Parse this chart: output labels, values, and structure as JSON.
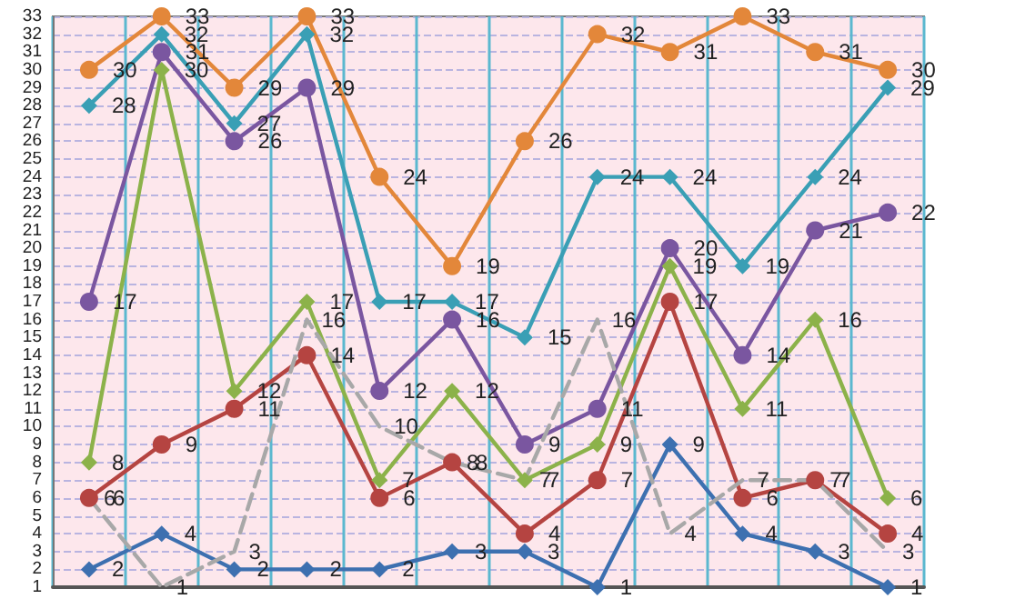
{
  "chart_data": {
    "type": "line",
    "categories": [
      null,
      null,
      null,
      null,
      null,
      null,
      null,
      null,
      null,
      null,
      null,
      null
    ],
    "series": [
      {
        "color": "#e3873a",
        "marker": "circle",
        "values": [
          30,
          33,
          29,
          33,
          24,
          19,
          26,
          32,
          31,
          33,
          31,
          30
        ]
      },
      {
        "color": "#3a9fb5",
        "marker": "diamond",
        "values": [
          28,
          32,
          27,
          32,
          17,
          17,
          15,
          24,
          24,
          19,
          24,
          29
        ]
      },
      {
        "color": "#7a56a0",
        "marker": "circle",
        "values": [
          17,
          31,
          26,
          29,
          12,
          16,
          9,
          11,
          20,
          14,
          21,
          22
        ]
      },
      {
        "color": "#8cb24a",
        "marker": "diamond",
        "values": [
          8,
          30,
          12,
          17,
          7,
          12,
          7,
          9,
          19,
          11,
          16,
          6
        ]
      },
      {
        "color": "#b54441",
        "marker": "circle",
        "values": [
          6,
          9,
          11,
          14,
          6,
          8,
          4,
          7,
          17,
          6,
          7,
          4
        ]
      },
      {
        "color": "#3d70b0",
        "marker": "diamond",
        "values": [
          2,
          4,
          2,
          2,
          2,
          3,
          3,
          1,
          9,
          4,
          3,
          1
        ]
      },
      {
        "color": "#a8a8a8",
        "marker": "none",
        "line_style": "dashed",
        "values": [
          6,
          1,
          3,
          16,
          10,
          8,
          7,
          16,
          4,
          7,
          7,
          3
        ]
      }
    ],
    "ylim": [
      1,
      33
    ],
    "yticks": [
      1,
      2,
      3,
      4,
      5,
      6,
      7,
      8,
      9,
      10,
      11,
      12,
      13,
      14,
      15,
      16,
      17,
      18,
      19,
      20,
      21,
      22,
      23,
      24,
      25,
      26,
      27,
      28,
      29,
      30,
      31,
      32,
      33
    ],
    "grid": true,
    "data_labels": true
  }
}
